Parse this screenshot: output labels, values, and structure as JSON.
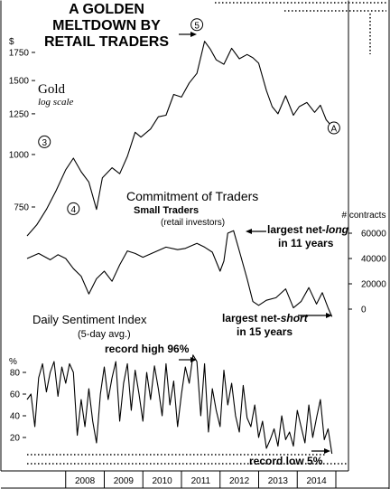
{
  "chart_data": [
    {
      "type": "line",
      "panel": "gold",
      "title": "A GOLDEN MELTDOWN BY RETAIL TRADERS",
      "series_label": "Gold",
      "series_sublabel": "log scale",
      "y_unit": "$",
      "y_ticks": [
        750,
        1000,
        1250,
        1500,
        1750
      ],
      "log_scale": true,
      "wave_labels": [
        {
          "label": "3",
          "date": 2007.45,
          "value": 1010
        },
        {
          "label": "4",
          "date": 2008.2,
          "value": 700
        },
        {
          "label": "5",
          "date": 2011.4,
          "value": 1920
        },
        {
          "label": "A",
          "date": 2014.95,
          "value": 1090
        }
      ],
      "x": [
        2007.0,
        2007.25,
        2007.5,
        2007.75,
        2008.0,
        2008.2,
        2008.4,
        2008.6,
        2008.8,
        2008.95,
        2009.2,
        2009.4,
        2009.6,
        2009.8,
        2009.95,
        2010.2,
        2010.4,
        2010.6,
        2010.8,
        2011.0,
        2011.2,
        2011.4,
        2011.6,
        2011.75,
        2011.9,
        2012.1,
        2012.3,
        2012.5,
        2012.7,
        2012.85,
        2013.0,
        2013.2,
        2013.35,
        2013.5,
        2013.7,
        2013.9,
        2014.05,
        2014.25,
        2014.45,
        2014.6,
        2014.75,
        2014.85
      ],
      "values": [
        640,
        680,
        740,
        820,
        920,
        980,
        910,
        860,
        740,
        880,
        930,
        900,
        990,
        1130,
        1100,
        1150,
        1230,
        1240,
        1390,
        1370,
        1480,
        1560,
        1860,
        1780,
        1680,
        1640,
        1790,
        1690,
        1730,
        1700,
        1650,
        1420,
        1300,
        1250,
        1380,
        1240,
        1300,
        1330,
        1260,
        1310,
        1210,
        1180
      ]
    },
    {
      "type": "line",
      "panel": "cot",
      "title": "Commitment of Traders",
      "subtitle": "Small Traders",
      "note": "(retail investors)",
      "y_unit": "# contracts",
      "y_ticks": [
        0,
        20000,
        40000,
        60000
      ],
      "annotations": [
        {
          "text_1": "largest net-",
          "text_em": "long",
          "text_2": "in 11 years"
        },
        {
          "text_1": "largest net-",
          "text_em": "short",
          "text_2": "in 15 years"
        }
      ],
      "x": [
        2007.0,
        2007.3,
        2007.6,
        2007.8,
        2008.0,
        2008.2,
        2008.4,
        2008.6,
        2008.8,
        2009.0,
        2009.2,
        2009.4,
        2009.6,
        2009.8,
        2010.0,
        2010.3,
        2010.6,
        2010.9,
        2011.1,
        2011.4,
        2011.6,
        2011.8,
        2012.0,
        2012.1,
        2012.2,
        2012.35,
        2012.5,
        2012.7,
        2012.85,
        2013.0,
        2013.2,
        2013.45,
        2013.7,
        2013.9,
        2014.1,
        2014.3,
        2014.5,
        2014.65,
        2014.8,
        2014.9
      ],
      "values": [
        40000,
        44000,
        39000,
        43000,
        40000,
        32000,
        26000,
        12000,
        24000,
        30000,
        22000,
        35000,
        46000,
        44000,
        41000,
        45000,
        49000,
        47000,
        48000,
        52000,
        49000,
        45000,
        30000,
        38000,
        60000,
        62000,
        46000,
        24000,
        6000,
        3000,
        7000,
        9000,
        16000,
        1000,
        6000,
        17000,
        4000,
        13000,
        1000,
        -6000
      ]
    },
    {
      "type": "line",
      "panel": "dsi",
      "title": "Daily Sentiment Index",
      "subtitle": "(5-day avg.)",
      "y_unit": "%",
      "y_ticks": [
        20,
        40,
        60,
        80
      ],
      "annotations": [
        {
          "text": "record high 96%"
        },
        {
          "text": "record low 5%"
        }
      ],
      "x": [
        2007.0,
        2007.1,
        2007.2,
        2007.3,
        2007.4,
        2007.5,
        2007.6,
        2007.7,
        2007.8,
        2007.9,
        2008.0,
        2008.1,
        2008.2,
        2008.3,
        2008.4,
        2008.5,
        2008.6,
        2008.7,
        2008.8,
        2008.9,
        2009.0,
        2009.1,
        2009.2,
        2009.3,
        2009.4,
        2009.5,
        2009.6,
        2009.7,
        2009.8,
        2009.9,
        2010.0,
        2010.1,
        2010.2,
        2010.3,
        2010.4,
        2010.5,
        2010.6,
        2010.7,
        2010.8,
        2010.9,
        2011.0,
        2011.1,
        2011.2,
        2011.3,
        2011.4,
        2011.5,
        2011.6,
        2011.7,
        2011.8,
        2011.9,
        2012.0,
        2012.1,
        2012.2,
        2012.3,
        2012.4,
        2012.5,
        2012.6,
        2012.7,
        2012.8,
        2012.9,
        2013.0,
        2013.1,
        2013.2,
        2013.3,
        2013.4,
        2013.5,
        2013.6,
        2013.7,
        2013.8,
        2013.9,
        2014.0,
        2014.1,
        2014.2,
        2014.3,
        2014.4,
        2014.5,
        2014.6,
        2014.7,
        2014.8,
        2014.9
      ],
      "values": [
        55,
        60,
        30,
        75,
        88,
        62,
        80,
        90,
        58,
        85,
        70,
        88,
        80,
        22,
        55,
        30,
        65,
        35,
        15,
        60,
        85,
        55,
        75,
        90,
        35,
        70,
        88,
        45,
        82,
        60,
        35,
        80,
        55,
        86,
        65,
        40,
        88,
        50,
        72,
        30,
        60,
        85,
        70,
        96,
        90,
        40,
        88,
        25,
        65,
        45,
        30,
        82,
        50,
        70,
        40,
        25,
        68,
        38,
        30,
        50,
        20,
        35,
        10,
        18,
        28,
        12,
        40,
        18,
        25,
        12,
        45,
        30,
        15,
        50,
        20,
        38,
        55,
        18,
        28,
        5
      ]
    }
  ],
  "x_axis": {
    "labels": [
      "2008",
      "2009",
      "2010",
      "2011",
      "2012",
      "2013",
      "2014"
    ],
    "range": [
      2007.0,
      2015.0
    ]
  }
}
